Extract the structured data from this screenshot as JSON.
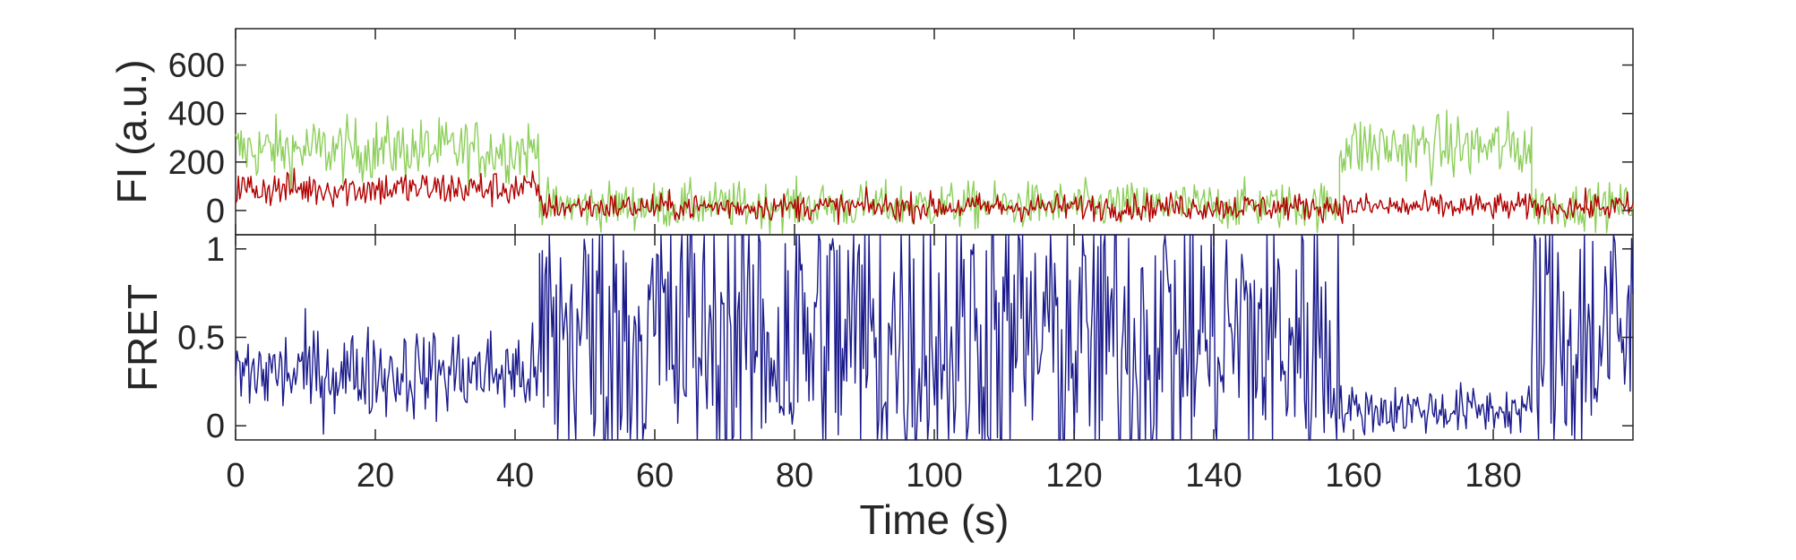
{
  "chart_data": [
    {
      "type": "line",
      "panel": "top",
      "ylabel": "FI (a.u.)",
      "xlabel": "",
      "xlim": [
        0,
        200
      ],
      "ylim": [
        -100,
        750
      ],
      "yticks": [
        0,
        200,
        400,
        600
      ],
      "ytick_labels": [
        "0",
        "200",
        "400",
        "600"
      ],
      "grid": false,
      "series": [
        {
          "color": "#8dcf5b",
          "segments": [
            {
              "x": [
                0,
                43.5
              ],
              "mean": 250,
              "noise": 65
            },
            {
              "x": [
                43.5,
                158
              ],
              "mean": 20,
              "noise": 48
            },
            {
              "x": [
                158,
                185.5
              ],
              "mean": 260,
              "noise": 68
            },
            {
              "x": [
                185.5,
                200
              ],
              "mean": 20,
              "noise": 45
            }
          ]
        },
        {
          "color": "#b20000",
          "segments": [
            {
              "x": [
                0,
                43.5
              ],
              "mean": 90,
              "noise": 38
            },
            {
              "x": [
                43.5,
                200
              ],
              "mean": 15,
              "noise": 28
            }
          ]
        }
      ]
    },
    {
      "type": "line",
      "panel": "bottom",
      "ylabel": "FRET",
      "xlabel": "Time (s)",
      "xlim": [
        0,
        200
      ],
      "ylim": [
        -0.08,
        1.08
      ],
      "yticks": [
        0,
        0.5,
        1
      ],
      "ytick_labels": [
        "0",
        "0.5",
        "1"
      ],
      "xticks": [
        0,
        20,
        40,
        60,
        80,
        100,
        120,
        140,
        160,
        180
      ],
      "xtick_labels": [
        "0",
        "20",
        "40",
        "60",
        "80",
        "100",
        "120",
        "140",
        "160",
        "180"
      ],
      "grid": false,
      "series": [
        {
          "color": "#1a1a8c",
          "segments": [
            {
              "x": [
                0,
                43.5
              ],
              "mean": 0.3,
              "noise": 0.13
            },
            {
              "x": [
                43.5,
                158
              ],
              "mean": 0.5,
              "noise": 0.5
            },
            {
              "x": [
                158,
                185.5
              ],
              "mean": 0.09,
              "noise": 0.07
            },
            {
              "x": [
                185.5,
                200
              ],
              "mean": 0.5,
              "noise": 0.45
            }
          ]
        }
      ]
    }
  ]
}
